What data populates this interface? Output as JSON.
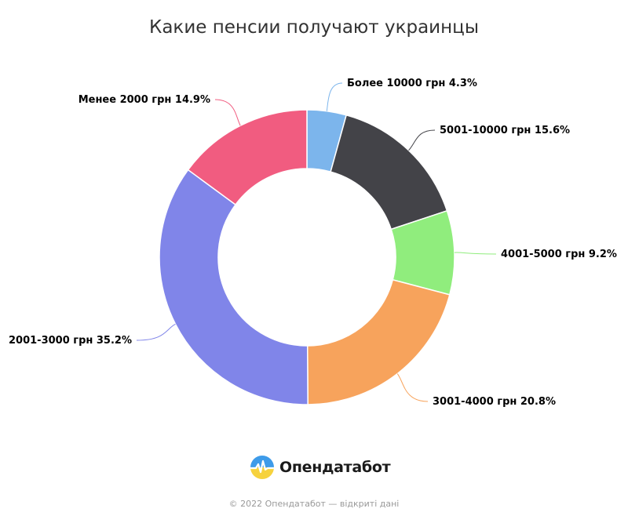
{
  "chart_data": {
    "type": "pie",
    "title": "Какие пенсии получают украинцы",
    "slices": [
      {
        "label": "Более 10000 грн",
        "value": 4.3,
        "display": "4.3%",
        "color": "#7cb5ec"
      },
      {
        "label": "5001-10000 грн",
        "value": 15.6,
        "display": "15.6%",
        "color": "#434348"
      },
      {
        "label": "4001-5000 грн",
        "value": 9.2,
        "display": "9.2%",
        "color": "#90ed7d"
      },
      {
        "label": "3001-4000 грн",
        "value": 20.8,
        "display": "20.8%",
        "color": "#f7a35c"
      },
      {
        "label": "2001-3000 грн",
        "value": 35.2,
        "display": "35.2%",
        "color": "#8085e9"
      },
      {
        "label": "Менее 2000 грн",
        "value": 14.9,
        "display": "14.9%",
        "color": "#f15c80"
      }
    ],
    "donut": true
  },
  "brand": {
    "name": "Опендатабот"
  },
  "footer": {
    "text": "© 2022 Опендатабот — відкриті дані"
  }
}
